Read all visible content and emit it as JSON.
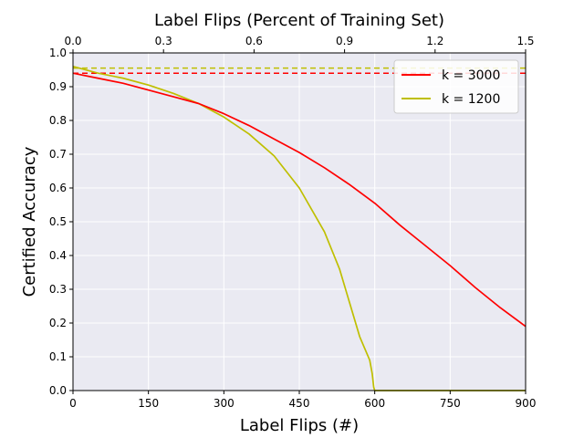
{
  "chart_data": {
    "type": "line",
    "title": "",
    "xlabel": "Label Flips (#)",
    "ylabel": "Certified Accuracy",
    "top_xlabel": "Label Flips (Percent of Training Set)",
    "xlim": [
      0,
      900
    ],
    "ylim": [
      0,
      1.0
    ],
    "xticks": [
      0,
      150,
      300,
      450,
      600,
      750,
      900
    ],
    "xtick_labels": [
      "0",
      "150",
      "300",
      "450",
      "600",
      "750",
      "900"
    ],
    "top_xticks": [
      0,
      180,
      360,
      540,
      720,
      900
    ],
    "top_xtick_labels": [
      "0.0",
      "0.3",
      "0.6",
      "0.9",
      "1.2",
      "1.5"
    ],
    "yticks": [
      0,
      0.1,
      0.2,
      0.3,
      0.4,
      0.5,
      0.6,
      0.7,
      0.8,
      0.9,
      1.0
    ],
    "ytick_labels": [
      "0.0",
      "0.1",
      "0.2",
      "0.3",
      "0.4",
      "0.5",
      "0.6",
      "0.7",
      "0.8",
      "0.9",
      "1.0"
    ],
    "grid": true,
    "legend_position": "top-right",
    "series": [
      {
        "name": "k = 3000",
        "color": "#ff0000",
        "baseline": 0.94,
        "x": [
          0,
          50,
          100,
          150,
          200,
          250,
          300,
          350,
          400,
          450,
          500,
          550,
          600,
          650,
          700,
          750,
          800,
          850,
          900
        ],
        "values": [
          0.94,
          0.925,
          0.91,
          0.89,
          0.87,
          0.85,
          0.82,
          0.785,
          0.745,
          0.705,
          0.66,
          0.61,
          0.555,
          0.49,
          0.43,
          0.37,
          0.305,
          0.245,
          0.19
        ]
      },
      {
        "name": "k = 1200",
        "color": "#bfbf00",
        "baseline": 0.955,
        "x": [
          0,
          50,
          100,
          150,
          200,
          250,
          300,
          350,
          400,
          450,
          500,
          530,
          550,
          570,
          590,
          595,
          598,
          600,
          650,
          700,
          750,
          800,
          850,
          900
        ],
        "values": [
          0.96,
          0.94,
          0.925,
          0.905,
          0.88,
          0.85,
          0.81,
          0.76,
          0.695,
          0.6,
          0.47,
          0.36,
          0.26,
          0.16,
          0.09,
          0.05,
          0.01,
          0.0,
          0.0,
          0.0,
          0.0,
          0.0,
          0.0,
          0.0
        ]
      }
    ]
  }
}
